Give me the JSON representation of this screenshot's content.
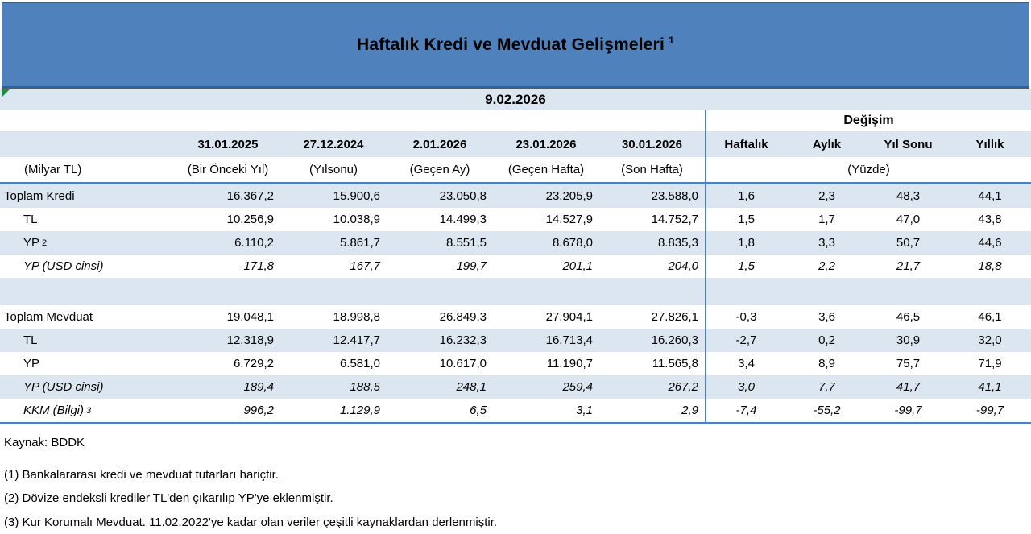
{
  "title": {
    "text": "Haftalık Kredi ve Mevduat Gelişmeleri",
    "superscript": "1"
  },
  "report_date": "9.02.2026",
  "table": {
    "change_group_label": "Değişim",
    "date_headers": [
      "31.01.2025",
      "27.12.2024",
      "2.01.2026",
      "23.01.2026",
      "30.01.2026"
    ],
    "change_headers": [
      "Haftalık",
      "Aylık",
      "Yıl Sonu",
      "Yıllık"
    ],
    "unit_label": "(Milyar TL)",
    "unit_headers": [
      "(Bir Önceki Yıl)",
      "(Yılsonu)",
      "(Geçen Ay)",
      "(Geçen Hafta)",
      "(Son Hafta)"
    ],
    "change_unit": "(Yüzde)",
    "rows": [
      {
        "label": "Toplam Kredi",
        "sup": "",
        "indent": false,
        "italic": false,
        "values": [
          "16.367,2",
          "15.900,6",
          "23.050,8",
          "23.205,9",
          "23.588,0"
        ],
        "changes": [
          "1,6",
          "2,3",
          "48,3",
          "44,1"
        ]
      },
      {
        "label": "TL",
        "sup": "",
        "indent": true,
        "italic": false,
        "values": [
          "10.256,9",
          "10.038,9",
          "14.499,3",
          "14.527,9",
          "14.752,7"
        ],
        "changes": [
          "1,5",
          "1,7",
          "47,0",
          "43,8"
        ]
      },
      {
        "label": "YP",
        "sup": "2",
        "indent": true,
        "italic": false,
        "values": [
          "6.110,2",
          "5.861,7",
          "8.551,5",
          "8.678,0",
          "8.835,3"
        ],
        "changes": [
          "1,8",
          "3,3",
          "50,7",
          "44,6"
        ]
      },
      {
        "label": "YP (USD cinsi)",
        "sup": "",
        "indent": true,
        "italic": true,
        "values": [
          "171,8",
          "167,7",
          "199,7",
          "201,1",
          "204,0"
        ],
        "changes": [
          "1,5",
          "2,2",
          "21,7",
          "18,8"
        ]
      },
      {
        "spacer": true
      },
      {
        "label": "Toplam Mevduat",
        "sup": "",
        "indent": false,
        "italic": false,
        "values": [
          "19.048,1",
          "18.998,8",
          "26.849,3",
          "27.904,1",
          "27.826,1"
        ],
        "changes": [
          "-0,3",
          "3,6",
          "46,5",
          "46,1"
        ]
      },
      {
        "label": "TL",
        "sup": "",
        "indent": true,
        "italic": false,
        "values": [
          "12.318,9",
          "12.417,7",
          "16.232,3",
          "16.713,4",
          "16.260,3"
        ],
        "changes": [
          "-2,7",
          "0,2",
          "30,9",
          "32,0"
        ]
      },
      {
        "label": "YP",
        "sup": "",
        "indent": true,
        "italic": false,
        "values": [
          "6.729,2",
          "6.581,0",
          "10.617,0",
          "11.190,7",
          "11.565,8"
        ],
        "changes": [
          "3,4",
          "8,9",
          "75,7",
          "71,9"
        ]
      },
      {
        "label": "YP (USD cinsi)",
        "sup": "",
        "indent": true,
        "italic": true,
        "values": [
          "189,4",
          "188,5",
          "248,1",
          "259,4",
          "267,2"
        ],
        "changes": [
          "3,0",
          "7,7",
          "41,7",
          "41,1"
        ]
      },
      {
        "label": "KKM (Bilgi)",
        "sup": "3",
        "indent": true,
        "italic": true,
        "values": [
          "996,2",
          "1.129,9",
          "6,5",
          "3,1",
          "2,9"
        ],
        "changes": [
          "-7,4",
          "-55,2",
          "-99,7",
          "-99,7"
        ]
      }
    ]
  },
  "footer": {
    "source": "Kaynak: BDDK",
    "notes": [
      "(1) Bankalararası kredi ve mevduat tutarları hariçtir.",
      "(2) Dövize endeksli krediler TL'den çıkarılıp YP'ye eklenmiştir.",
      "(3) Kur Korumalı Mevduat. 11.02.2022'ye kadar olan veriler çeşitli kaynaklardan derlenmiştir."
    ]
  },
  "colors": {
    "banner_blue": "#4f81bd",
    "banner_edge": "#36618f",
    "row_light_blue": "#dce6f1",
    "border_blue": "#4f81bd",
    "flag_green": "#1f8b48",
    "text": "#000000"
  }
}
